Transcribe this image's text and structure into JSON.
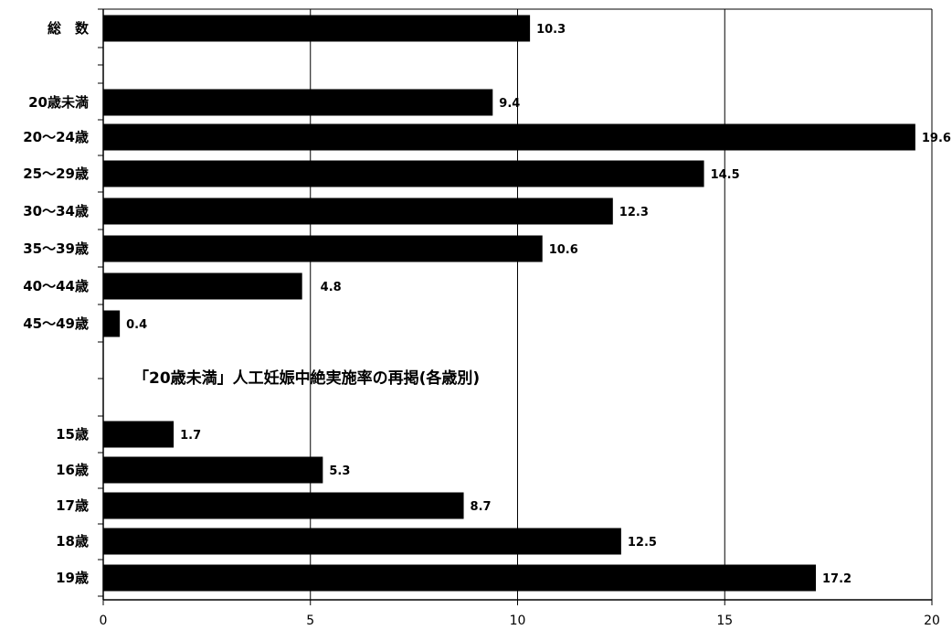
{
  "chart_data": {
    "type": "bar",
    "orientation": "horizontal",
    "title": "",
    "xlabel": "",
    "ylabel": "",
    "xlim": [
      0,
      20
    ],
    "x_ticks": [
      "0",
      "5",
      "10",
      "15",
      "20"
    ],
    "grid": "vertical",
    "bar_color": "#000000",
    "annotation": "「20歳未満」人工妊娠中絶実施率の再掲(各歳別)",
    "categories": [
      "総　数",
      "20歳未満",
      "20～24歳",
      "25～29歳",
      "30～34歳",
      "35～39歳",
      "40～44歳",
      "45～49歳",
      "15歳",
      "16歳",
      "17歳",
      "18歳",
      "19歳"
    ],
    "values": [
      10.3,
      9.4,
      19.6,
      14.5,
      12.3,
      10.6,
      4.8,
      0.4,
      1.7,
      5.3,
      8.7,
      12.5,
      17.2
    ],
    "value_labels": [
      "10.3",
      "9.4",
      "19.6",
      "14.5",
      "12.3",
      "10.6",
      "4.8",
      "0.4",
      "1.7",
      "5.3",
      "8.7",
      "12.5",
      "17.2"
    ]
  }
}
